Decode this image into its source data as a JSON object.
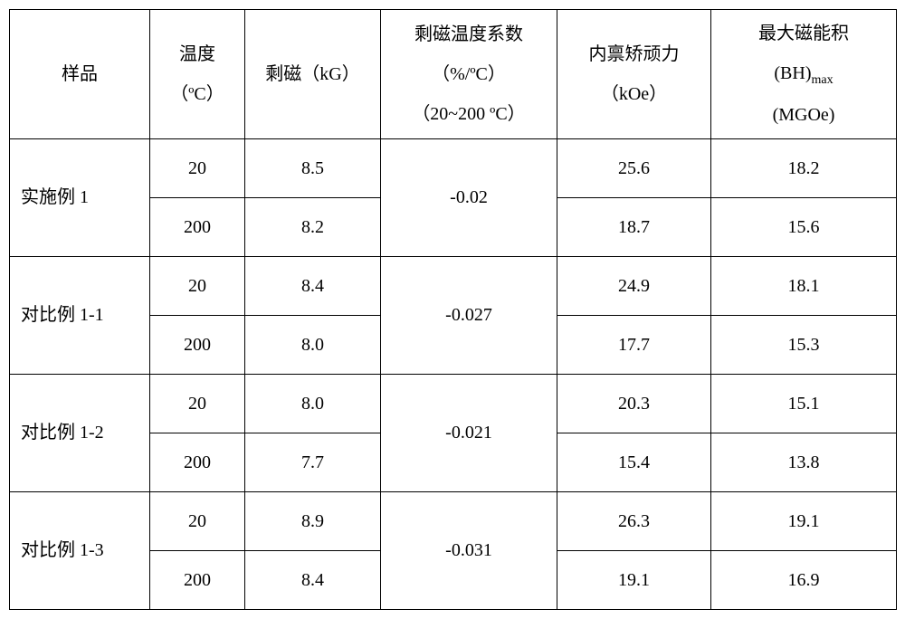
{
  "headers": {
    "sample": "样品",
    "temp_l1": "温度",
    "temp_l2": "（ºC）",
    "rem": "剩磁（kG）",
    "coef_l1": "剩磁温度系数",
    "coef_l2": "（%/ºC）",
    "coef_l3": "（20~200 ºC）",
    "coerc_l1": "内禀矫顽力",
    "coerc_l2": "（kOe）",
    "bh_l1": "最大磁能积",
    "bh_l2_pre": "(BH)",
    "bh_l2_sub": "max",
    "bh_l3": "(MGOe)"
  },
  "rows": [
    {
      "sample": "实施例 1",
      "coef": "-0.02",
      "sub": [
        {
          "t": "20",
          "r": "8.5",
          "c": "25.6",
          "b": "18.2"
        },
        {
          "t": "200",
          "r": "8.2",
          "c": "18.7",
          "b": "15.6"
        }
      ]
    },
    {
      "sample": "对比例 1-1",
      "coef": "-0.027",
      "sub": [
        {
          "t": "20",
          "r": "8.4",
          "c": "24.9",
          "b": "18.1"
        },
        {
          "t": "200",
          "r": "8.0",
          "c": "17.7",
          "b": "15.3"
        }
      ]
    },
    {
      "sample": "对比例 1-2",
      "coef": "-0.021",
      "sub": [
        {
          "t": "20",
          "r": "8.0",
          "c": "20.3",
          "b": "15.1"
        },
        {
          "t": "200",
          "r": "7.7",
          "c": "15.4",
          "b": "13.8"
        }
      ]
    },
    {
      "sample": "对比例 1-3",
      "coef": "-0.031",
      "sub": [
        {
          "t": "20",
          "r": "8.9",
          "c": "26.3",
          "b": "19.1"
        },
        {
          "t": "200",
          "r": "8.4",
          "c": "19.1",
          "b": "16.9"
        }
      ]
    }
  ]
}
